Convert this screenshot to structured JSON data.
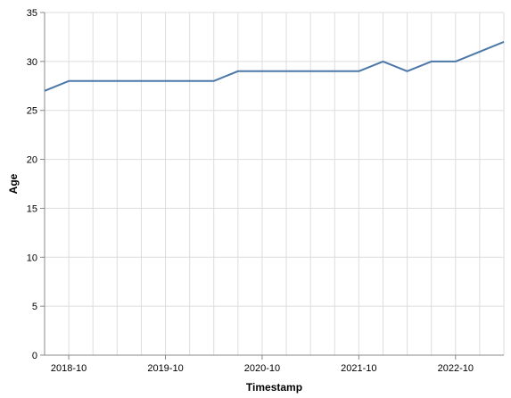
{
  "chart_data": {
    "type": "line",
    "xlabel": "Timestamp",
    "ylabel": "Age",
    "ylim": [
      0,
      35
    ],
    "y_ticks": [
      0,
      5,
      10,
      15,
      20,
      25,
      30,
      35
    ],
    "x_range": [
      "2018-07",
      "2023-04"
    ],
    "x_tick_labels": [
      "2018-10",
      "2019-10",
      "2020-10",
      "2021-10",
      "2022-10"
    ],
    "grid": true,
    "line_color": "#4c78a8",
    "series": [
      {
        "x": [
          "2018-07",
          "2018-10",
          "2019-01",
          "2019-04",
          "2019-07",
          "2019-10",
          "2020-01",
          "2020-04",
          "2020-07",
          "2020-10",
          "2021-01",
          "2021-04",
          "2021-07",
          "2021-10",
          "2022-01",
          "2022-04",
          "2022-07",
          "2022-10",
          "2023-01",
          "2023-04"
        ],
        "values": [
          27,
          28,
          28,
          28,
          28,
          28,
          28,
          28,
          29,
          29,
          29,
          29,
          29,
          29,
          30,
          29,
          30,
          30,
          31,
          32
        ]
      }
    ]
  }
}
